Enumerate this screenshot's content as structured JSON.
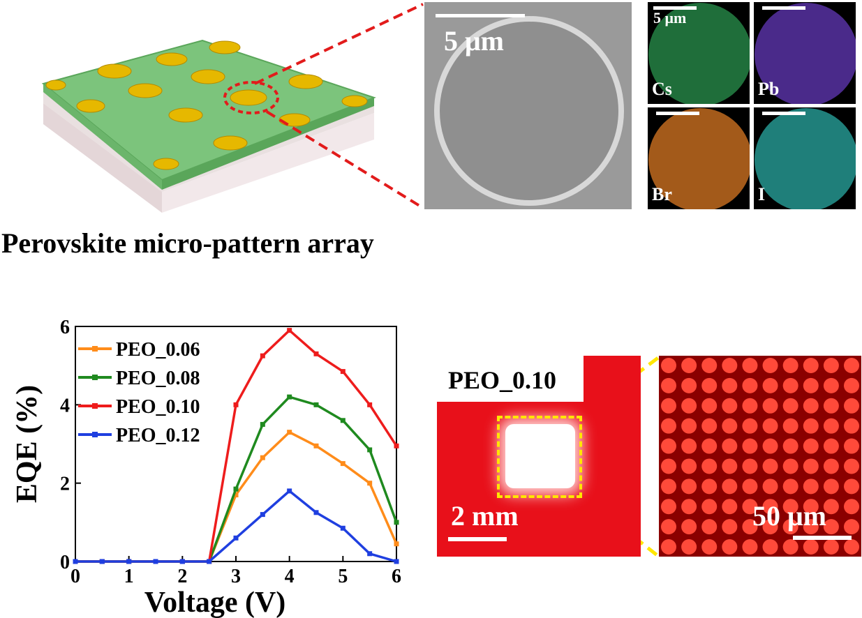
{
  "schematic": {
    "caption": "Perovskite micro-pattern array"
  },
  "sem": {
    "scale_label": "5 μm"
  },
  "eds": {
    "scale_label": "5 μm",
    "maps": [
      {
        "element": "Cs",
        "color": "#1f6e3a"
      },
      {
        "element": "Pb",
        "color": "#4a2a8a"
      },
      {
        "element": "Br",
        "color": "#a35a1a"
      },
      {
        "element": "I",
        "color": "#1f7f7a"
      }
    ]
  },
  "pl": {
    "sample_label": "PEO_0.10",
    "scale_left": "2 mm",
    "scale_right": "50 μm"
  },
  "chart_data": {
    "type": "line",
    "xlabel": "Voltage (V)",
    "ylabel": "EQE (%)",
    "xlim": [
      0,
      6
    ],
    "ylim": [
      0,
      6
    ],
    "xticks": [
      "0",
      "1",
      "2",
      "3",
      "4",
      "5",
      "6"
    ],
    "yticks": [
      "0",
      "2",
      "4",
      "6"
    ],
    "legend_position": "top-left",
    "series": [
      {
        "name": "PEO_0.06",
        "color": "#ff8c1a",
        "x": [
          0,
          0.5,
          1,
          1.5,
          2,
          2.5,
          3,
          3.5,
          4,
          4.5,
          5,
          5.5,
          6
        ],
        "y": [
          0,
          0,
          0,
          0,
          0,
          0,
          1.7,
          2.65,
          3.3,
          2.95,
          2.5,
          2.0,
          0.45
        ]
      },
      {
        "name": "PEO_0.08",
        "color": "#1f8a1f",
        "x": [
          0,
          0.5,
          1,
          1.5,
          2,
          2.5,
          3,
          3.5,
          4,
          4.5,
          5,
          5.5,
          6
        ],
        "y": [
          0,
          0,
          0,
          0,
          0,
          0,
          1.85,
          3.5,
          4.2,
          4.0,
          3.6,
          2.85,
          1.0
        ]
      },
      {
        "name": "PEO_0.10",
        "color": "#ee1c1c",
        "x": [
          0,
          0.5,
          1,
          1.5,
          2,
          2.5,
          3,
          3.5,
          4,
          4.5,
          5,
          5.5,
          6
        ],
        "y": [
          0,
          0,
          0,
          0,
          0,
          0,
          4.0,
          5.25,
          5.9,
          5.3,
          4.85,
          4.0,
          2.95
        ]
      },
      {
        "name": "PEO_0.12",
        "color": "#1f3fe0",
        "x": [
          0,
          0.5,
          1,
          1.5,
          2,
          2.5,
          3,
          3.5,
          4,
          4.5,
          5,
          5.5,
          6
        ],
        "y": [
          0,
          0,
          0,
          0,
          0,
          0,
          0.6,
          1.2,
          1.8,
          1.25,
          0.85,
          0.2,
          0
        ]
      }
    ]
  }
}
